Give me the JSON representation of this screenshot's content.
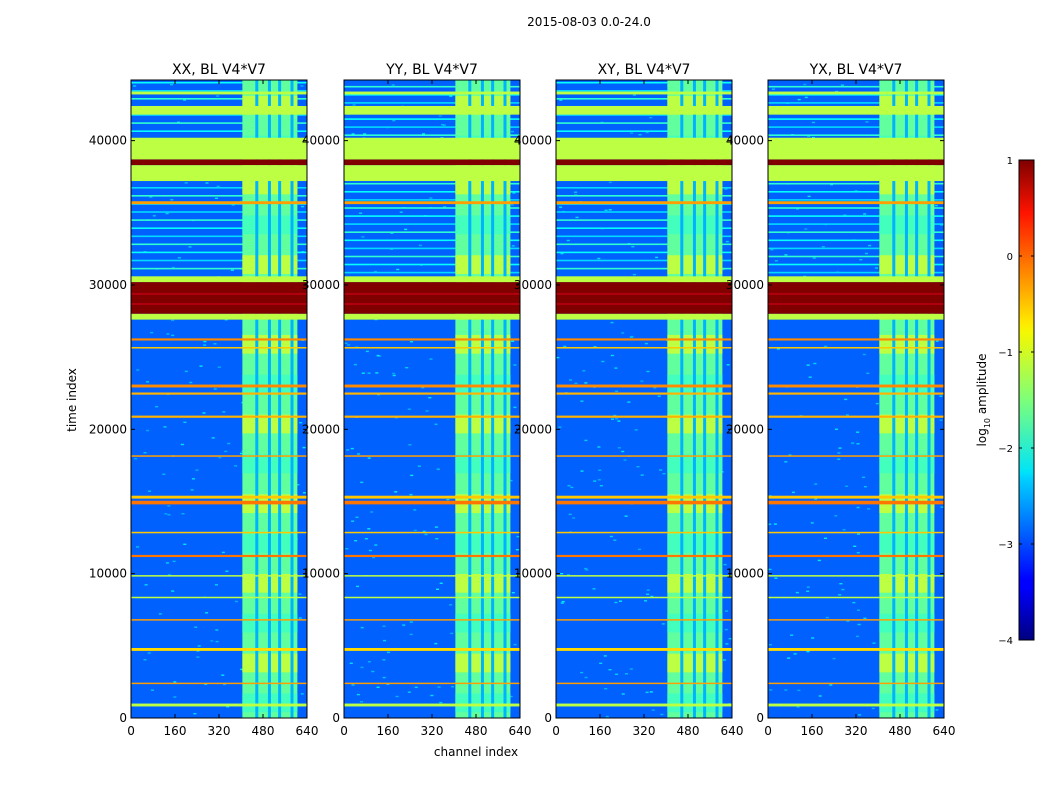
{
  "figure": {
    "suptitle": "2015-08-03 0.0-24.0",
    "xlabel": "channel index",
    "ylabel": "time index"
  },
  "chart_data": {
    "type": "heatmap",
    "x_ticks": [
      0,
      160,
      320,
      480,
      640
    ],
    "y_ticks": [
      0,
      10000,
      20000,
      30000,
      40000
    ],
    "xlim": [
      0,
      640
    ],
    "ylim": [
      0,
      44200
    ],
    "colorbar": {
      "label": "log10 amplitude",
      "label_base": "log",
      "label_sub": "10",
      "label_rest": " amplitude",
      "range": [
        -4,
        1
      ],
      "ticks": [
        1,
        0,
        -1,
        -2,
        -3,
        -4
      ],
      "tick_labels": [
        "1",
        "0",
        "−1",
        "−2",
        "−3",
        "−4"
      ]
    },
    "panels": [
      {
        "title": "XX, BL V4*V7"
      },
      {
        "title": "YY, BL V4*V7"
      },
      {
        "title": "XY, BL V4*V7"
      },
      {
        "title": "YX, BL V4*V7"
      }
    ],
    "rfi_channel_band": [
      405,
      605
    ],
    "time_bands": [
      {
        "start": 28000,
        "end": 30200,
        "value": 1.0
      },
      {
        "start": 38300,
        "end": 38700,
        "value": 1.0
      },
      {
        "start": 27600,
        "end": 28000,
        "value": -1.2
      },
      {
        "start": 30200,
        "end": 30600,
        "value": -1.2
      },
      {
        "start": 37200,
        "end": 38300,
        "value": -1.2
      },
      {
        "start": 38700,
        "end": 40200,
        "value": -1.2
      },
      {
        "start": 41800,
        "end": 42400,
        "value": -1.2
      },
      {
        "start": 43200,
        "end": 43400,
        "value": -1.2
      },
      {
        "start": 35600,
        "end": 35800,
        "value": -0.4
      },
      {
        "start": 26150,
        "end": 26300,
        "value": -0.3
      },
      {
        "start": 22900,
        "end": 23100,
        "value": -0.3
      },
      {
        "start": 22400,
        "end": 22550,
        "value": -0.5
      },
      {
        "start": 20800,
        "end": 20950,
        "value": -0.5
      },
      {
        "start": 14800,
        "end": 15050,
        "value": -0.2
      },
      {
        "start": 15200,
        "end": 15400,
        "value": -0.6
      },
      {
        "start": 11150,
        "end": 11300,
        "value": -0.2
      },
      {
        "start": 4650,
        "end": 4850,
        "value": -0.7
      },
      {
        "start": 12800,
        "end": 12900,
        "value": -0.6
      },
      {
        "start": 6750,
        "end": 6850,
        "value": -0.4
      },
      {
        "start": 2350,
        "end": 2450,
        "value": -0.4
      },
      {
        "start": 18100,
        "end": 18200,
        "value": -0.4
      },
      {
        "start": 25600,
        "end": 25700,
        "value": -0.6
      },
      {
        "start": 9800,
        "end": 9900,
        "value": -1.2
      },
      {
        "start": 8300,
        "end": 8400,
        "value": -1.2
      },
      {
        "start": 800,
        "end": 1000,
        "value": -1.2
      }
    ]
  }
}
